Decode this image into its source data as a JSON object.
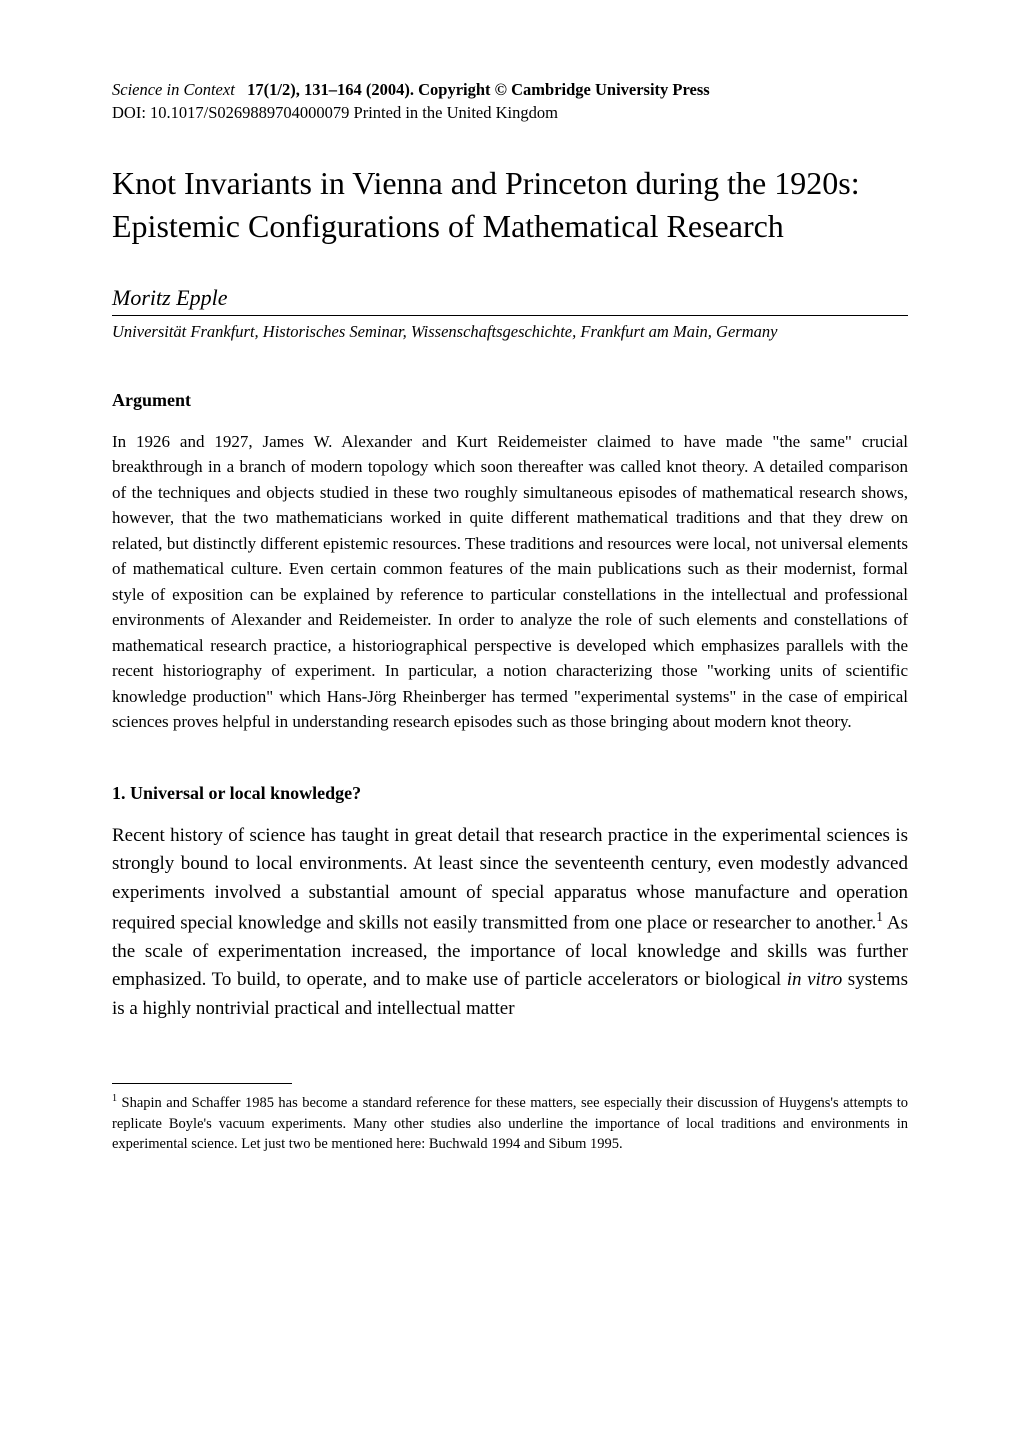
{
  "journal": {
    "title": "Science in Context",
    "volume_issue": "17(1/2), 131–164 (2004). Copyright © Cambridge University Press",
    "doi_line": "DOI: 10.1017/S0269889704000079    Printed in the United Kingdom"
  },
  "title": "Knot Invariants in Vienna and Princeton during the 1920s: Epistemic Configurations of Mathematical Research",
  "author": "Moritz Epple",
  "affiliation": "Universität Frankfurt, Historisches Seminar, Wissenschaftsgeschichte, Frankfurt am Main, Germany",
  "sections": {
    "argument": {
      "heading": "Argument",
      "text": "In 1926 and 1927, James W. Alexander and Kurt Reidemeister claimed to have made \"the same\" crucial breakthrough in a branch of modern topology which soon thereafter was called knot theory. A detailed comparison of the techniques and objects studied in these two roughly simultaneous episodes of mathematical research shows, however, that the two mathematicians worked in quite different mathematical traditions and that they drew on related, but distinctly different epistemic resources. These traditions and resources were local, not universal elements of mathematical culture. Even certain common features of the main publications such as their modernist, formal style of exposition can be explained by reference to particular constellations in the intellectual and professional environments of Alexander and Reidemeister. In order to analyze the role of such elements and constellations of mathematical research practice, a historiographical perspective is developed which emphasizes parallels with the recent historiography of experiment. In particular, a notion characterizing those \"working units of scientific knowledge production\" which Hans-Jörg Rheinberger has termed \"experimental systems\" in the case of empirical sciences proves helpful in understanding research episodes such as those bringing about modern knot theory."
    },
    "section1": {
      "heading": "1. Universal or local knowledge?",
      "text_part1": "Recent history of science has taught in great detail that research practice in the experimental sciences is strongly bound to local environments. At least since the seventeenth century, even modestly advanced experiments involved a substantial amount of special apparatus whose manufacture and operation required special knowledge and skills not easily transmitted from one place or researcher to another.",
      "text_part2": " As the scale of experimentation increased, the importance of local knowledge and skills was further emphasized. To build, to operate, and to make use of particle accelerators or biological ",
      "text_italic": "in vitro",
      "text_part3": " systems is a highly nontrivial practical and intellectual matter"
    }
  },
  "footnote": {
    "marker": "1",
    "text": " Shapin and Schaffer 1985 has become a standard reference for these matters, see especially their discussion of Huygens's attempts to replicate Boyle's vacuum experiments. Many other studies also underline the importance of local traditions and environments in experimental science. Let just two be mentioned here: Buchwald 1994 and Sibum 1995."
  },
  "styling": {
    "page_bg": "#ffffff",
    "text_color": "#000000",
    "title_fontsize": 32,
    "body_fontsize": 19,
    "abstract_fontsize": 17,
    "footnote_fontsize": 14.5,
    "header_fontsize": 16.5,
    "author_fontsize": 22,
    "section_heading_fontsize": 18
  }
}
